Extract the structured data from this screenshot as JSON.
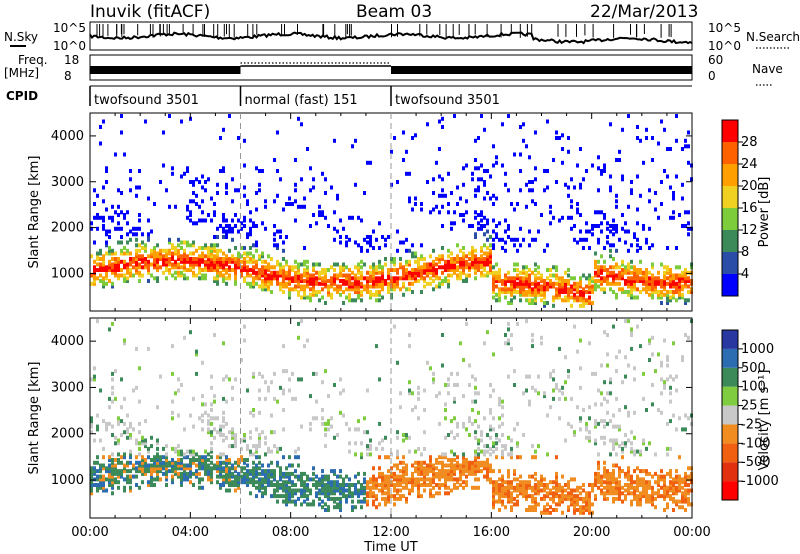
{
  "header": {
    "station": "Inuvik (fitACF)",
    "beam": "Beam 03",
    "date": "22/Mar/2013"
  },
  "top_panels": {
    "nsky_label": "N.Sky",
    "nsky_ticks": [
      "10^5",
      "10^0"
    ],
    "nsearch_ticks": [
      "10^5",
      "10^0"
    ],
    "nsearch_label": "N.Search",
    "freq_label_1": "Freq.",
    "freq_label_2": "[MHz]",
    "freq_ticks": [
      "18",
      "8"
    ],
    "nave_ticks": [
      "60",
      "0"
    ],
    "nave_label": "Nave",
    "cpid_label": "CPID"
  },
  "cpid_segments": [
    {
      "name": "twofsound 3501",
      "start_h": 0,
      "end_h": 6
    },
    {
      "name": "normal (fast) 151",
      "start_h": 6,
      "end_h": 12
    },
    {
      "name": "twofsound 3501",
      "start_h": 12,
      "end_h": 24
    }
  ],
  "chart_data": [
    {
      "type": "heatmap",
      "title": "Power",
      "xlabel": "",
      "ylabel": "Slant Range [km]",
      "x_range_hours": [
        0,
        24
      ],
      "ylim": [
        180,
        4500
      ],
      "y_ticks": [
        "1000",
        "2000",
        "3000",
        "4000"
      ],
      "colorbar_label": "Power [dB]",
      "colorbar_ticks": [
        "4",
        "8",
        "12",
        "16",
        "20",
        "24",
        "28"
      ],
      "colorbar_colors": [
        "#0000ff",
        "#2a4ea8",
        "#3c8a5a",
        "#7ccc3c",
        "#f0d020",
        "#ffa000",
        "#ff6000",
        "#ff0000"
      ]
    },
    {
      "type": "heatmap",
      "title": "Velocity",
      "xlabel": "Time UT",
      "ylabel": "Slant Range [km]",
      "x_range_hours": [
        0,
        24
      ],
      "ylim": [
        180,
        4500
      ],
      "y_ticks": [
        "1000",
        "2000",
        "3000",
        "4000"
      ],
      "x_ticks": [
        "00:00",
        "04:00",
        "08:00",
        "12:00",
        "16:00",
        "20:00",
        "00:00"
      ],
      "colorbar_label": "Velocity [m s⁻¹]",
      "colorbar_ticks": [
        "1000",
        "500",
        "100",
        "25",
        "-25",
        "-100",
        "-500",
        "-1000"
      ],
      "colorbar_colors": [
        "#2838a0",
        "#2c6cb0",
        "#3c8a5a",
        "#80cc40",
        "#c8c8c8",
        "#f08c20",
        "#f06010",
        "#e03010",
        "#ff0000"
      ]
    }
  ]
}
